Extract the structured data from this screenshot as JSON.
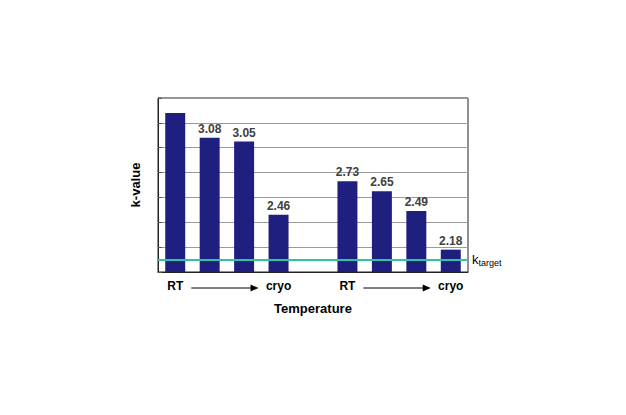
{
  "chart_data": {
    "type": "bar",
    "x_label": "Temperature",
    "y_label": "k-value",
    "categories": [
      "RT",
      null,
      null,
      "cryo",
      null,
      "RT",
      null,
      null,
      "cryo"
    ],
    "values": [
      3.28,
      3.08,
      3.05,
      2.46,
      null,
      2.73,
      2.65,
      2.49,
      2.18
    ],
    "value_labels": [
      null,
      "3.08",
      "3.05",
      "2.46",
      null,
      "2.73",
      "2.65",
      "2.49",
      "2.18"
    ],
    "data_labels": true,
    "color": "#1f1f80",
    "ylim": [
      2,
      3.4
    ],
    "yticks": [
      2,
      2.2,
      2.4,
      2.6,
      2.8,
      3,
      3.2,
      3.4
    ],
    "grid": true,
    "tick_labels": "x",
    "target_line": {
      "value": 2.1,
      "label": "k",
      "label_subscript": "target",
      "color": "#2ec4a6"
    }
  }
}
